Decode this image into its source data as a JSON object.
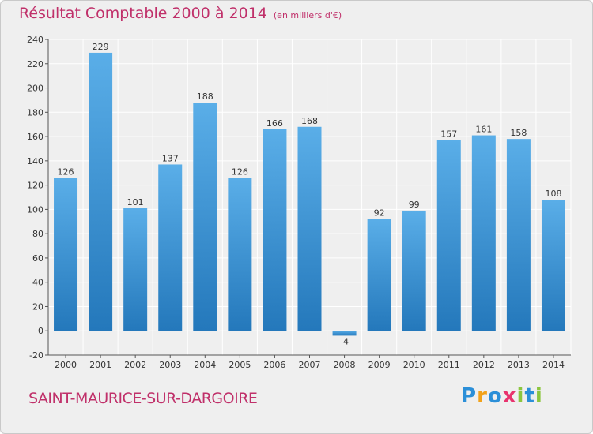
{
  "title": "Résultat Comptable 2000 à 2014",
  "unit": "(en milliers d'€)",
  "commune": "SAINT-MAURICE-SUR-DARGOIRE",
  "logo": {
    "letters": [
      {
        "ch": "P",
        "color": "#2b8fd8"
      },
      {
        "ch": "r",
        "color": "#f2a21a"
      },
      {
        "ch": "o",
        "color": "#2b8fd8"
      },
      {
        "ch": "x",
        "color": "#e8336e"
      },
      {
        "ch": "i",
        "color": "#8cc63f"
      },
      {
        "ch": "t",
        "color": "#2b8fd8"
      },
      {
        "ch": "i",
        "color": "#8cc63f"
      }
    ]
  },
  "colors": {
    "bar_top": "#5aaee8",
    "bar_bottom": "#2478bb",
    "plot_bg": "#efefef",
    "grid": "#ffffff"
  },
  "chart_data": {
    "type": "bar",
    "title": "Résultat Comptable 2000 à 2014",
    "xlabel": "",
    "ylabel": "",
    "ylim": [
      -20,
      240
    ],
    "yticks": [
      -20,
      0,
      20,
      40,
      60,
      80,
      100,
      120,
      140,
      160,
      180,
      200,
      220,
      240
    ],
    "categories": [
      "2000",
      "2001",
      "2002",
      "2003",
      "2004",
      "2005",
      "2006",
      "2007",
      "2008",
      "2009",
      "2010",
      "2011",
      "2012",
      "2013",
      "2014"
    ],
    "values": [
      126,
      229,
      101,
      137,
      188,
      126,
      166,
      168,
      -4,
      92,
      99,
      157,
      161,
      158,
      108
    ]
  }
}
